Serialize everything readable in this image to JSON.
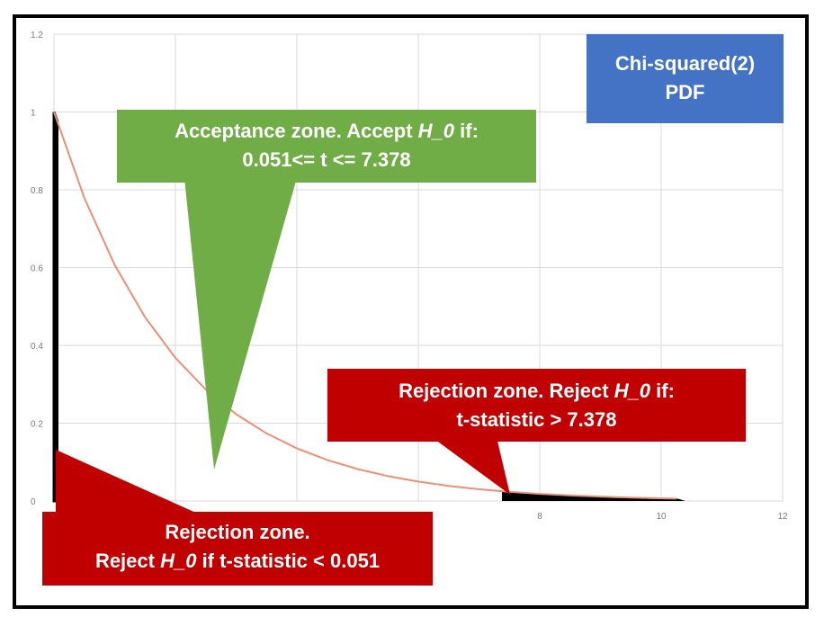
{
  "chart_data": {
    "type": "line",
    "title": "Chi-squared(2) PDF",
    "series": [
      {
        "x": [
          0,
          0.5,
          1,
          1.5,
          2,
          2.5,
          3,
          3.5,
          4,
          4.5,
          5,
          5.5,
          6,
          6.5,
          7,
          7.5,
          8,
          8.5,
          9,
          9.5,
          10,
          10.5,
          11,
          11.5,
          12
        ],
        "values": [
          1,
          0.7788,
          0.6065,
          0.4724,
          0.3679,
          0.2865,
          0.2231,
          0.1738,
          0.1353,
          0.1054,
          0.0821,
          0.0639,
          0.0498,
          0.0388,
          0.0302,
          0.0235,
          0.0183,
          0.0143,
          0.0111,
          0.0087,
          0.0067,
          0.0052,
          0.0041,
          0.0032,
          0.0025
        ],
        "color": "#e8907a"
      }
    ],
    "xlim": [
      0,
      12
    ],
    "ylim": [
      0,
      1.2
    ],
    "x_tick_labels": [
      "8",
      "10",
      "12"
    ],
    "x_tick_values": [
      8,
      10,
      12
    ],
    "y_tick_labels": [
      "0",
      "0.2",
      "0.4",
      "0.6",
      "0.8",
      "1",
      "1.2"
    ],
    "y_tick_values": [
      0,
      0.2,
      0.4,
      0.6,
      0.8,
      1,
      1.2
    ],
    "grid": true,
    "lower_critical_value": 0.051,
    "upper_critical_value": 7.378
  },
  "callouts": {
    "title_line1": "Chi-squared(2)",
    "title_line2": "PDF",
    "accept_prefix": "Acceptance zone. Accept ",
    "accept_h0": "H_0",
    "accept_suffix": " if:",
    "accept_line2": "0.051<= t <= 7.378",
    "reject_right_prefix": "Rejection zone. Reject ",
    "reject_right_h0": "H_0",
    "reject_right_suffix": " if:",
    "reject_right_line2": "t-statistic > 7.378",
    "reject_left_line1": "Rejection zone.",
    "reject_left_prefix": "Reject ",
    "reject_left_h0": "H_0",
    "reject_left_suffix": " if t-statistic < 0.051"
  },
  "colors": {
    "title_box": "#4472c4",
    "accept_box": "#70ad47",
    "reject_box": "#c00000",
    "curve": "#e8907a",
    "rejection_fill": "#000000",
    "grid": "#d9d9d9"
  }
}
